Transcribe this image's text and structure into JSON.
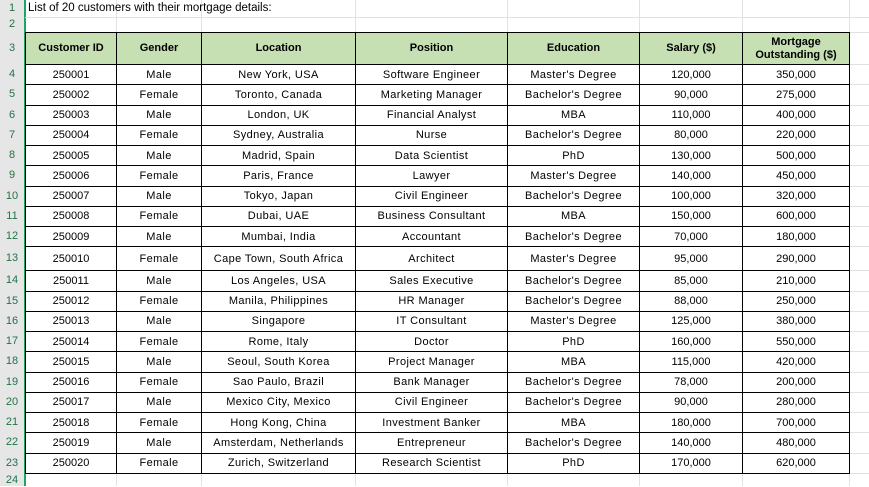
{
  "sheet": {
    "title": "List of 20 customers with their mortgage details:",
    "row_numbers": [
      "1",
      "2",
      "3",
      "4",
      "5",
      "6",
      "7",
      "8",
      "9",
      "10",
      "11",
      "12",
      "13",
      "14",
      "15",
      "16",
      "17",
      "18",
      "19",
      "20",
      "21",
      "22",
      "23",
      "24"
    ],
    "header_color": "#c6e0b4",
    "columns": [
      "Customer ID",
      "Gender",
      "Location",
      "Position",
      "Education",
      "Salary ($)",
      "Mortgage Outstanding ($)"
    ],
    "rows": [
      [
        "250001",
        "Male",
        "New York, USA",
        "Software Engineer",
        "Master's Degree",
        "120,000",
        "350,000"
      ],
      [
        "250002",
        "Female",
        "Toronto, Canada",
        "Marketing Manager",
        "Bachelor's Degree",
        "90,000",
        "275,000"
      ],
      [
        "250003",
        "Male",
        "London, UK",
        "Financial Analyst",
        "MBA",
        "110,000",
        "400,000"
      ],
      [
        "250004",
        "Female",
        "Sydney, Australia",
        "Nurse",
        "Bachelor's Degree",
        "80,000",
        "220,000"
      ],
      [
        "250005",
        "Male",
        "Madrid, Spain",
        "Data Scientist",
        "PhD",
        "130,000",
        "500,000"
      ],
      [
        "250006",
        "Female",
        "Paris, France",
        "Lawyer",
        "Master's Degree",
        "140,000",
        "450,000"
      ],
      [
        "250007",
        "Male",
        "Tokyo, Japan",
        "Civil Engineer",
        "Bachelor's Degree",
        "100,000",
        "320,000"
      ],
      [
        "250008",
        "Female",
        "Dubai, UAE",
        "Business Consultant",
        "MBA",
        "150,000",
        "600,000"
      ],
      [
        "250009",
        "Male",
        "Mumbai, India",
        "Accountant",
        "Bachelor's Degree",
        "70,000",
        "180,000"
      ],
      [
        "250010",
        "Female",
        "Cape Town, South Africa",
        "Architect",
        "Master's Degree",
        "95,000",
        "290,000"
      ],
      [
        "250011",
        "Male",
        "Los Angeles, USA",
        "Sales Executive",
        "Bachelor's Degree",
        "85,000",
        "210,000"
      ],
      [
        "250012",
        "Female",
        "Manila, Philippines",
        "HR Manager",
        "Bachelor's Degree",
        "88,000",
        "250,000"
      ],
      [
        "250013",
        "Male",
        "Singapore",
        "IT Consultant",
        "Master's Degree",
        "125,000",
        "380,000"
      ],
      [
        "250014",
        "Female",
        "Rome, Italy",
        "Doctor",
        "PhD",
        "160,000",
        "550,000"
      ],
      [
        "250015",
        "Male",
        "Seoul, South Korea",
        "Project Manager",
        "MBA",
        "115,000",
        "420,000"
      ],
      [
        "250016",
        "Female",
        "Sao Paulo, Brazil",
        "Bank Manager",
        "Bachelor's Degree",
        "78,000",
        "200,000"
      ],
      [
        "250017",
        "Male",
        "Mexico City, Mexico",
        "Civil Engineer",
        "Bachelor's Degree",
        "90,000",
        "280,000"
      ],
      [
        "250018",
        "Female",
        "Hong Kong, China",
        "Investment Banker",
        "MBA",
        "180,000",
        "700,000"
      ],
      [
        "250019",
        "Male",
        "Amsterdam, Netherlands",
        "Entrepreneur",
        "Bachelor's Degree",
        "140,000",
        "480,000"
      ],
      [
        "250020",
        "Female",
        "Zurich, Switzerland",
        "Research Scientist",
        "PhD",
        "170,000",
        "620,000"
      ]
    ]
  }
}
